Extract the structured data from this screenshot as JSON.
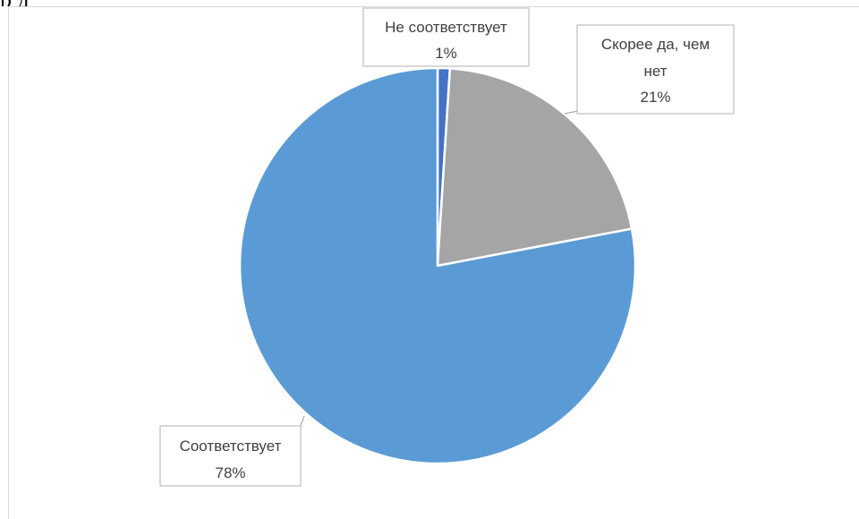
{
  "page": {
    "fragment_text": "р                                          д"
  },
  "colors": {
    "blue": "#5b9bd5",
    "gray": "#a5a5a5",
    "dark_blue": "#4472c4",
    "label_border": "#bfbfbf",
    "leader_line": "#a6a6a6",
    "text": "#404040",
    "frame": "#d9d9d9"
  },
  "chart_data": {
    "type": "pie",
    "start_angle_deg": 0,
    "direction": "clockwise",
    "slices": [
      {
        "name": "Не соответствует",
        "value": 1,
        "percent_label": "1%",
        "color": "#4472c4"
      },
      {
        "name": "Скорее да, чем нет",
        "value": 21,
        "percent_label": "21%",
        "color": "#a5a5a5"
      },
      {
        "name": "Соответствует",
        "value": 78,
        "percent_label": "78%",
        "color": "#5b9bd5"
      }
    ],
    "legend": "none",
    "data_labels": {
      "show_category_name": true,
      "show_percent": true,
      "callout_boxes": true
    }
  }
}
